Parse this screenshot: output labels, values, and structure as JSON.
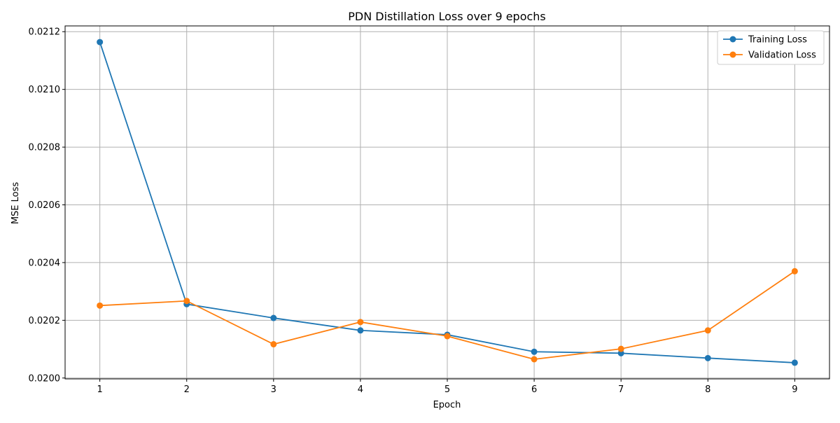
{
  "chart_data": {
    "type": "line",
    "title": "PDN Distillation Loss over 9 epochs",
    "xlabel": "Epoch",
    "ylabel": "MSE Loss",
    "x": [
      1,
      2,
      3,
      4,
      5,
      6,
      7,
      8,
      9
    ],
    "x_ticks": [
      "1",
      "2",
      "3",
      "4",
      "5",
      "6",
      "7",
      "8",
      "9"
    ],
    "y_ticks": [
      "0.0200",
      "0.0202",
      "0.0204",
      "0.0206",
      "0.0208",
      "0.0210",
      "0.0212"
    ],
    "xlim": [
      0.6,
      9.4
    ],
    "ylim": [
      0.019997,
      0.02122
    ],
    "grid": true,
    "legend_position": "top-right",
    "series": [
      {
        "name": "Training Loss",
        "color": "#1f77b4",
        "marker": "circle",
        "values": [
          0.021164,
          0.020256,
          0.020208,
          0.020165,
          0.02015,
          0.020091,
          0.020086,
          0.020069,
          0.020053
        ]
      },
      {
        "name": "Validation Loss",
        "color": "#ff7f0e",
        "marker": "circle",
        "values": [
          0.020251,
          0.020267,
          0.020117,
          0.020194,
          0.020145,
          0.020065,
          0.020101,
          0.020165,
          0.02037
        ]
      }
    ]
  }
}
